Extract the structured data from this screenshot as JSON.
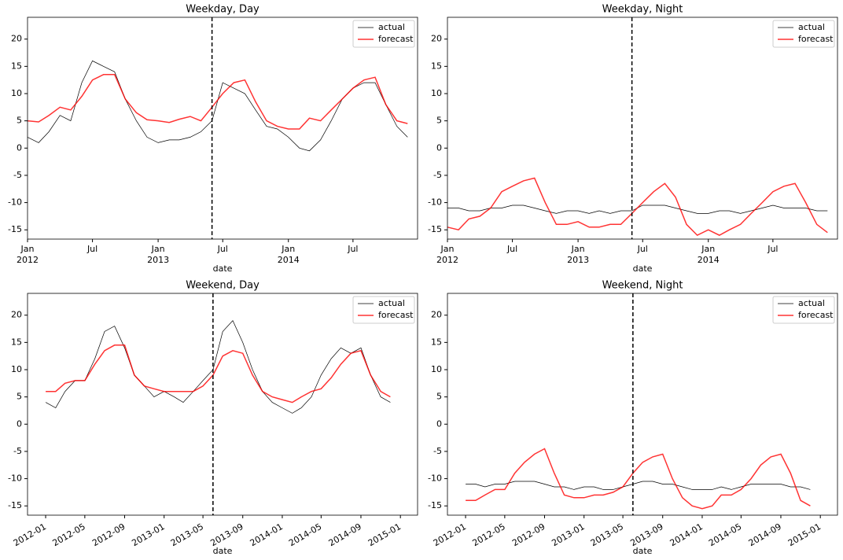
{
  "chart_data": [
    {
      "type": "line",
      "title": "Weekday, Day",
      "xlabel": "date",
      "x": [
        "2012-01",
        "2012-02",
        "2012-03",
        "2012-04",
        "2012-05",
        "2012-06",
        "2012-07",
        "2012-08",
        "2012-09",
        "2012-10",
        "2012-11",
        "2012-12",
        "2013-01",
        "2013-02",
        "2013-03",
        "2013-04",
        "2013-05",
        "2013-06",
        "2013-07",
        "2013-08",
        "2013-09",
        "2013-10",
        "2013-11",
        "2013-12",
        "2014-01",
        "2014-02",
        "2014-03",
        "2014-04",
        "2014-05",
        "2014-06",
        "2014-07",
        "2014-08",
        "2014-09",
        "2014-10",
        "2014-11",
        "2014-12"
      ],
      "series": [
        {
          "name": "actual",
          "color": "#000000",
          "values": [
            2,
            1,
            3,
            6,
            5,
            12,
            16,
            15,
            14,
            9,
            5,
            2,
            1,
            1.5,
            1.5,
            2,
            3,
            5,
            12,
            11,
            10,
            7,
            4,
            3.5,
            2,
            0,
            -0.5,
            1.5,
            5,
            9,
            11,
            12,
            12,
            8,
            4,
            2
          ]
        },
        {
          "name": "forecast",
          "color": "#ff0000",
          "values": [
            5,
            4.8,
            6,
            7.5,
            7,
            9.5,
            12.5,
            13.5,
            13.5,
            9,
            6.5,
            5.2,
            5,
            4.7,
            5.3,
            5.8,
            5,
            7.5,
            10,
            12,
            12.5,
            8.5,
            5,
            4,
            3.5,
            3.5,
            5.5,
            5,
            7,
            9,
            11,
            12.5,
            13,
            8,
            5,
            4.5
          ]
        }
      ],
      "xlim": [
        "2012-01-01",
        "2014-12-29"
      ],
      "xticks": [
        {
          "value": "2012-01",
          "label": "Jan",
          "sublabel": "2012"
        },
        {
          "value": "2012-07",
          "label": "Jul"
        },
        {
          "value": "2013-01",
          "label": "Jan",
          "sublabel": "2013"
        },
        {
          "value": "2013-07",
          "label": "Jul"
        },
        {
          "value": "2014-01",
          "label": "Jan",
          "sublabel": "2014"
        },
        {
          "value": "2014-07",
          "label": "Jul"
        }
      ],
      "ylim": [
        -16.7,
        24
      ],
      "yticks": [
        -15,
        -10,
        -5,
        0,
        5,
        10,
        15,
        20
      ],
      "vline": "2013-06",
      "legend": "upper right"
    },
    {
      "type": "line",
      "title": "Weekday, Night",
      "xlabel": "date",
      "x": [
        "2012-01",
        "2012-02",
        "2012-03",
        "2012-04",
        "2012-05",
        "2012-06",
        "2012-07",
        "2012-08",
        "2012-09",
        "2012-10",
        "2012-11",
        "2012-12",
        "2013-01",
        "2013-02",
        "2013-03",
        "2013-04",
        "2013-05",
        "2013-06",
        "2013-07",
        "2013-08",
        "2013-09",
        "2013-10",
        "2013-11",
        "2013-12",
        "2014-01",
        "2014-02",
        "2014-03",
        "2014-04",
        "2014-05",
        "2014-06",
        "2014-07",
        "2014-08",
        "2014-09",
        "2014-10",
        "2014-11",
        "2014-12"
      ],
      "series": [
        {
          "name": "actual",
          "color": "#000000",
          "values": [
            -11,
            -11,
            -11.5,
            -11.5,
            -11,
            -11,
            -10.5,
            -10.5,
            -11,
            -11.5,
            -12,
            -11.5,
            -11.5,
            -12,
            -11.5,
            -12,
            -11.5,
            -11.5,
            -10.5,
            -10.5,
            -10.5,
            -11,
            -11.5,
            -12,
            -12,
            -11.5,
            -11.5,
            -12,
            -11.5,
            -11,
            -10.5,
            -11,
            -11,
            -11,
            -11.5,
            -11.5
          ]
        },
        {
          "name": "forecast",
          "color": "#ff0000",
          "values": [
            -14.5,
            -15,
            -13,
            -12.5,
            -11,
            -8,
            -7,
            -6,
            -5.5,
            -10,
            -14,
            -14,
            -13.5,
            -14.5,
            -14.5,
            -14,
            -14,
            -12,
            -10,
            -8,
            -6.5,
            -9,
            -14,
            -16,
            -15,
            -16,
            -15,
            -14,
            -12,
            -10,
            -8,
            -7,
            -6.5,
            -10,
            -14,
            -15.5
          ]
        }
      ],
      "xlim": [
        "2012-01-01",
        "2014-12-29"
      ],
      "xticks": [
        {
          "value": "2012-01",
          "label": "Jan",
          "sublabel": "2012"
        },
        {
          "value": "2012-07",
          "label": "Jul"
        },
        {
          "value": "2013-01",
          "label": "Jan",
          "sublabel": "2013"
        },
        {
          "value": "2013-07",
          "label": "Jul"
        },
        {
          "value": "2014-01",
          "label": "Jan",
          "sublabel": "2014"
        },
        {
          "value": "2014-07",
          "label": "Jul"
        }
      ],
      "ylim": [
        -16.7,
        24
      ],
      "yticks": [
        -15,
        -10,
        -5,
        0,
        5,
        10,
        15,
        20
      ],
      "vline": "2013-06",
      "legend": "upper right"
    },
    {
      "type": "line",
      "title": "Weekend, Day",
      "xlabel": "date",
      "x": [
        "2012-01",
        "2012-02",
        "2012-03",
        "2012-04",
        "2012-05",
        "2012-06",
        "2012-07",
        "2012-08",
        "2012-09",
        "2012-10",
        "2012-11",
        "2012-12",
        "2013-01",
        "2013-02",
        "2013-03",
        "2013-04",
        "2013-05",
        "2013-06",
        "2013-07",
        "2013-08",
        "2013-09",
        "2013-10",
        "2013-11",
        "2013-12",
        "2014-01",
        "2014-02",
        "2014-03",
        "2014-04",
        "2014-05",
        "2014-06",
        "2014-07",
        "2014-08",
        "2014-09",
        "2014-10",
        "2014-11",
        "2014-12"
      ],
      "series": [
        {
          "name": "actual",
          "color": "#000000",
          "values": [
            4,
            3,
            6,
            8,
            8,
            12,
            17,
            18,
            14,
            9,
            7,
            5,
            6,
            5,
            4,
            6,
            8,
            10,
            17,
            19,
            15,
            10,
            6,
            4,
            3,
            2,
            3,
            5,
            9,
            12,
            14,
            13,
            14,
            9,
            5,
            4
          ]
        },
        {
          "name": "forecast",
          "color": "#ff0000",
          "values": [
            6,
            6,
            7.5,
            8,
            8,
            11,
            13.5,
            14.5,
            14.5,
            9,
            7,
            6.5,
            6,
            6,
            6,
            6,
            7,
            9,
            12.5,
            13.5,
            13,
            9,
            6,
            5,
            4.5,
            4,
            5,
            6,
            6.5,
            8.5,
            11,
            13,
            13.5,
            9,
            6,
            5
          ]
        }
      ],
      "xlim": [
        "2011-11-06",
        "2015-02-23"
      ],
      "xticks": [
        "2012-01",
        "2012-05",
        "2012-09",
        "2013-01",
        "2013-05",
        "2013-09",
        "2014-01",
        "2014-05",
        "2014-09",
        "2015-01"
      ],
      "xtick_rotation": 30,
      "ylim": [
        -16.7,
        24
      ],
      "yticks": [
        -15,
        -10,
        -5,
        0,
        5,
        10,
        15,
        20
      ],
      "vline": "2013-06",
      "legend": "upper right"
    },
    {
      "type": "line",
      "title": "Weekend, Night",
      "xlabel": "date",
      "x": [
        "2012-01",
        "2012-02",
        "2012-03",
        "2012-04",
        "2012-05",
        "2012-06",
        "2012-07",
        "2012-08",
        "2012-09",
        "2012-10",
        "2012-11",
        "2012-12",
        "2013-01",
        "2013-02",
        "2013-03",
        "2013-04",
        "2013-05",
        "2013-06",
        "2013-07",
        "2013-08",
        "2013-09",
        "2013-10",
        "2013-11",
        "2013-12",
        "2014-01",
        "2014-02",
        "2014-03",
        "2014-04",
        "2014-05",
        "2014-06",
        "2014-07",
        "2014-08",
        "2014-09",
        "2014-10",
        "2014-11",
        "2014-12"
      ],
      "series": [
        {
          "name": "actual",
          "color": "#000000",
          "values": [
            -11,
            -11,
            -11.5,
            -11,
            -11,
            -10.5,
            -10.5,
            -10.5,
            -11,
            -11.5,
            -11.5,
            -12,
            -11.5,
            -11.5,
            -12,
            -12,
            -11.5,
            -11,
            -10.5,
            -10.5,
            -11,
            -11,
            -11.5,
            -12,
            -12,
            -12,
            -11.5,
            -12,
            -11.5,
            -11,
            -11,
            -11,
            -11,
            -11.5,
            -11.5,
            -12
          ]
        },
        {
          "name": "forecast",
          "color": "#ff0000",
          "values": [
            -14,
            -14,
            -13,
            -12,
            -12,
            -9,
            -7,
            -5.5,
            -4.5,
            -9,
            -13,
            -13.5,
            -13.5,
            -13,
            -13,
            -12.5,
            -11.5,
            -9,
            -7,
            -6,
            -5.5,
            -10,
            -13.5,
            -15,
            -15.5,
            -15,
            -13,
            -13,
            -12,
            -10,
            -7.5,
            -6,
            -5.5,
            -9,
            -14,
            -15
          ]
        }
      ],
      "xlim": [
        "2011-11-06",
        "2015-02-23"
      ],
      "xticks": [
        "2012-01",
        "2012-05",
        "2012-09",
        "2013-01",
        "2013-05",
        "2013-09",
        "2014-01",
        "2014-05",
        "2014-09",
        "2015-01"
      ],
      "xtick_rotation": 30,
      "ylim": [
        -16.7,
        24
      ],
      "yticks": [
        -15,
        -10,
        -5,
        0,
        5,
        10,
        15,
        20
      ],
      "vline": "2013-06",
      "legend": "upper right"
    }
  ]
}
